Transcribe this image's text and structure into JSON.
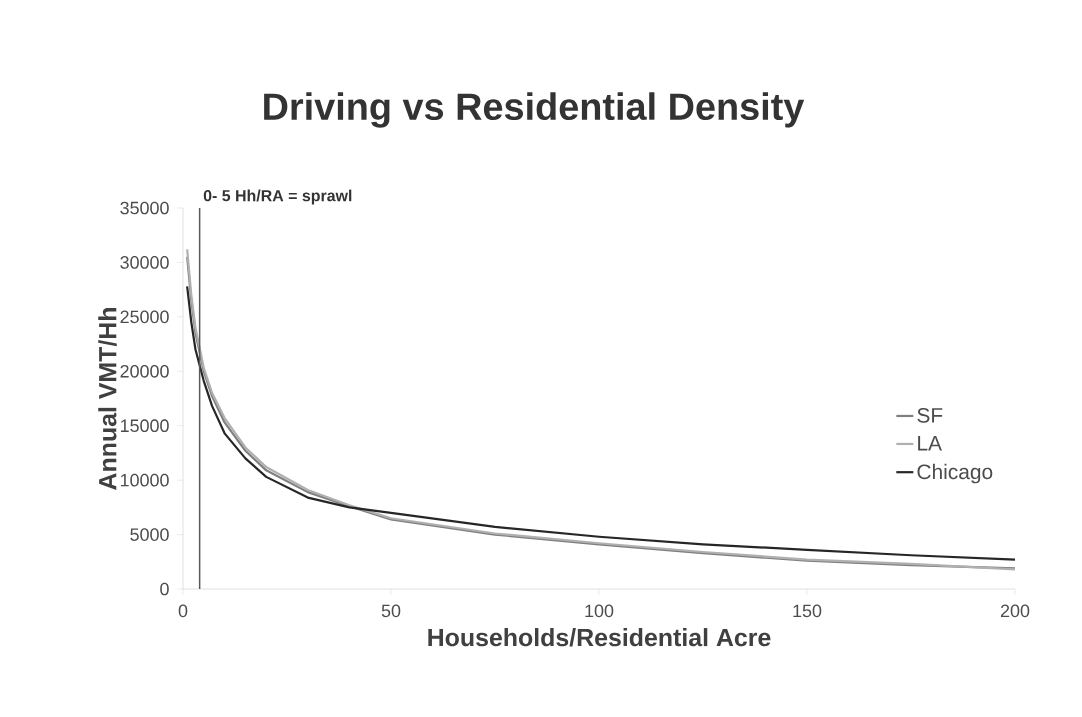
{
  "chart_data": {
    "type": "line",
    "title": "Driving vs Residential Density",
    "xlabel": "Households/Residential Acre",
    "ylabel": "Annual VMT/Hh",
    "x": [
      1,
      2,
      3,
      5,
      7,
      10,
      15,
      20,
      30,
      40,
      50,
      75,
      100,
      125,
      150,
      175,
      200
    ],
    "series": [
      {
        "name": "SF",
        "color": "#7f7f7f",
        "values": [
          30500,
          26500,
          23500,
          20000,
          17700,
          15300,
          12700,
          10900,
          8900,
          7600,
          6400,
          5000,
          4100,
          3300,
          2600,
          2200,
          1900
        ]
      },
      {
        "name": "LA",
        "color": "#b0b0b0",
        "values": [
          31200,
          27000,
          24000,
          20300,
          18000,
          15700,
          13000,
          11200,
          9100,
          7700,
          6500,
          5100,
          4200,
          3400,
          2700,
          2300,
          1800
        ]
      },
      {
        "name": "Chicago",
        "color": "#262626",
        "values": [
          27800,
          24500,
          22000,
          19100,
          16800,
          14300,
          12000,
          10300,
          8400,
          7500,
          7000,
          5700,
          4800,
          4100,
          3600,
          3100,
          2700
        ]
      }
    ],
    "xlim": [
      0,
      200
    ],
    "ylim": [
      0,
      35000
    ],
    "xticks": [
      0,
      50,
      100,
      150,
      200
    ],
    "yticks": [
      0,
      5000,
      10000,
      15000,
      20000,
      25000,
      30000,
      35000
    ],
    "ref_lines": [
      {
        "axis": "x",
        "value": 4,
        "label": "0- 5 Hh/RA = sprawl",
        "color": "#595959"
      }
    ],
    "legend": "right",
    "grid": false,
    "marker": "none",
    "line_style": "solid"
  }
}
